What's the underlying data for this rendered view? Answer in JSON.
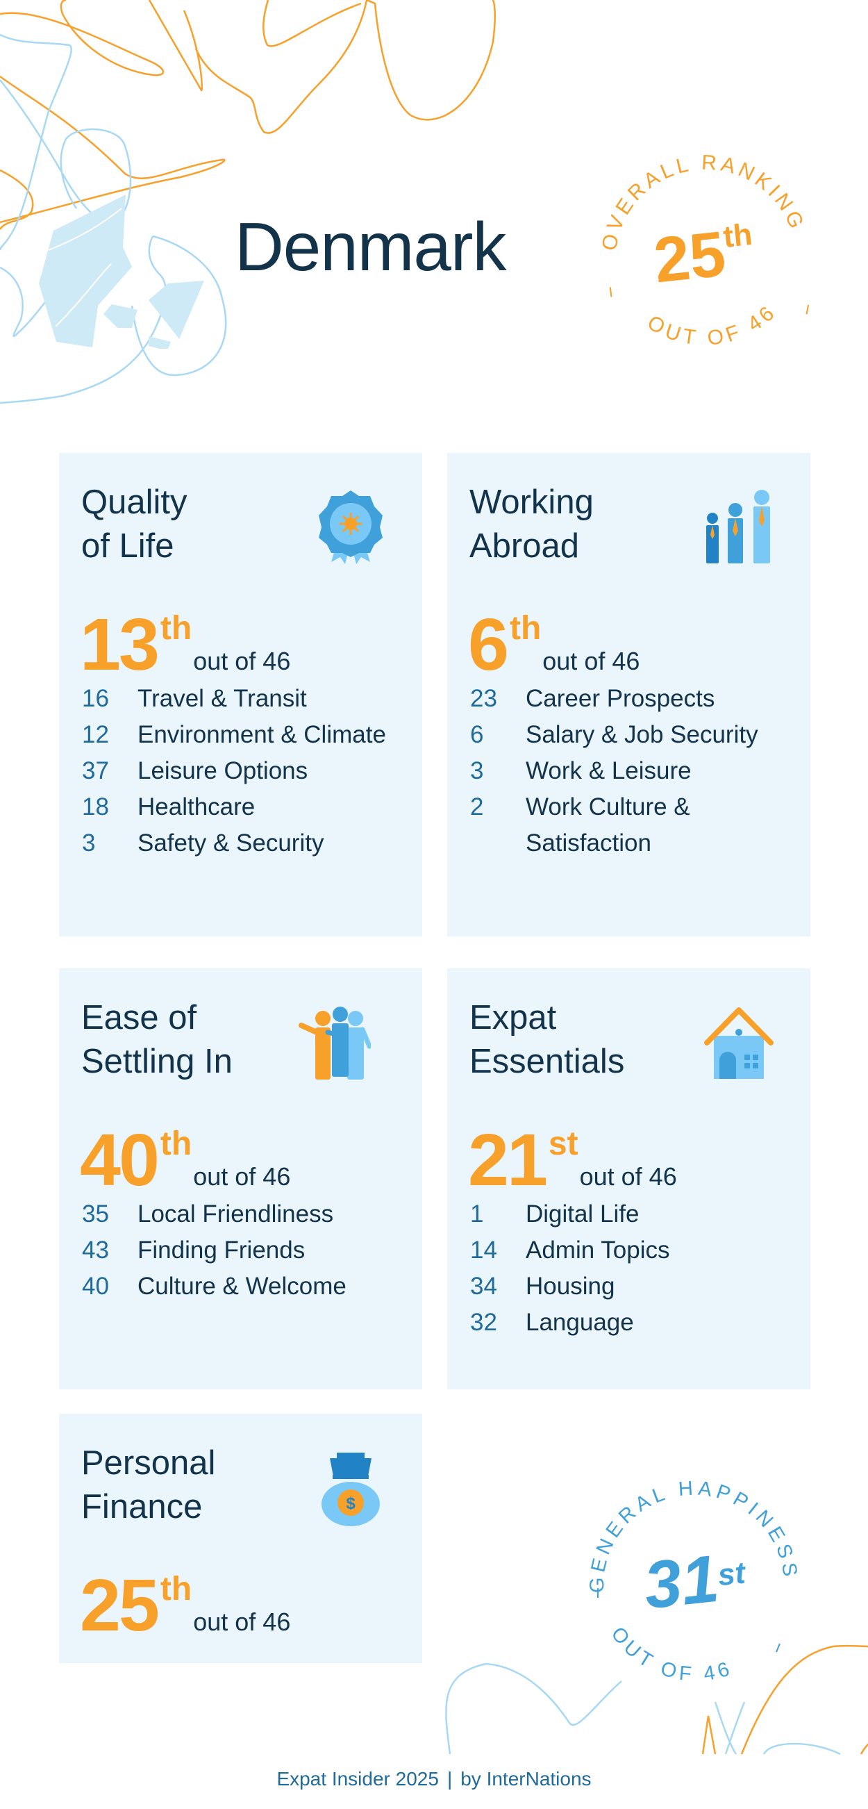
{
  "title": "Denmark",
  "overall": {
    "label": "OVERALL RANKING",
    "rank": "25",
    "suffix": "th",
    "out_of": "OUT OF 46"
  },
  "happiness": {
    "label": "GENERAL HAPPINESS",
    "rank": "31",
    "suffix": "st",
    "out_of": "OUT OF 46"
  },
  "categories": [
    {
      "title_lines": [
        "Quality",
        "of Life"
      ],
      "icon": "award-ribbon-icon",
      "rank": "13",
      "suffix": "th",
      "out_of": "out of 46",
      "items": [
        {
          "rank": "16",
          "label": "Travel & Transit"
        },
        {
          "rank": "12",
          "label": "Environment & Climate"
        },
        {
          "rank": "37",
          "label": "Leisure Options"
        },
        {
          "rank": "18",
          "label": "Healthcare"
        },
        {
          "rank": "3",
          "label": "Safety & Security"
        }
      ]
    },
    {
      "title_lines": [
        "Working",
        "Abroad"
      ],
      "icon": "workers-icon",
      "rank": "6",
      "suffix": "th",
      "out_of": "out of 46",
      "items": [
        {
          "rank": "23",
          "label": "Career Prospects"
        },
        {
          "rank": "6",
          "label": "Salary & Job Security"
        },
        {
          "rank": "3",
          "label": "Work & Leisure"
        },
        {
          "rank": "2",
          "label": "Work Culture & Satisfaction"
        }
      ]
    },
    {
      "title_lines": [
        "Ease of",
        "Settling In"
      ],
      "icon": "people-group-icon",
      "rank": "40",
      "suffix": "th",
      "out_of": "out of 46",
      "items": [
        {
          "rank": "35",
          "label": "Local Friendliness"
        },
        {
          "rank": "43",
          "label": "Finding Friends"
        },
        {
          "rank": "40",
          "label": "Culture & Welcome"
        }
      ]
    },
    {
      "title_lines": [
        "Expat",
        "Essentials"
      ],
      "icon": "house-icon",
      "rank": "21",
      "suffix": "st",
      "out_of": "out of 46",
      "items": [
        {
          "rank": "1",
          "label": "Digital Life"
        },
        {
          "rank": "14",
          "label": "Admin Topics"
        },
        {
          "rank": "34",
          "label": "Housing"
        },
        {
          "rank": "32",
          "label": "Language"
        }
      ]
    },
    {
      "title_lines": [
        "Personal",
        "Finance"
      ],
      "icon": "money-bag-icon",
      "rank": "25",
      "suffix": "th",
      "out_of": "out of 46",
      "items": []
    }
  ],
  "footer": {
    "source": "Expat Insider 2025",
    "separator": "|",
    "by": "by InterNations"
  },
  "colors": {
    "orange": "#f7a02a",
    "panel_bg": "#eaf5fc",
    "dark_text": "#12334a",
    "blue_number": "#1f6a9a",
    "light_blue": "#7ac8f5",
    "mid_blue": "#3fa0da",
    "dark_blue": "#2183c6"
  }
}
